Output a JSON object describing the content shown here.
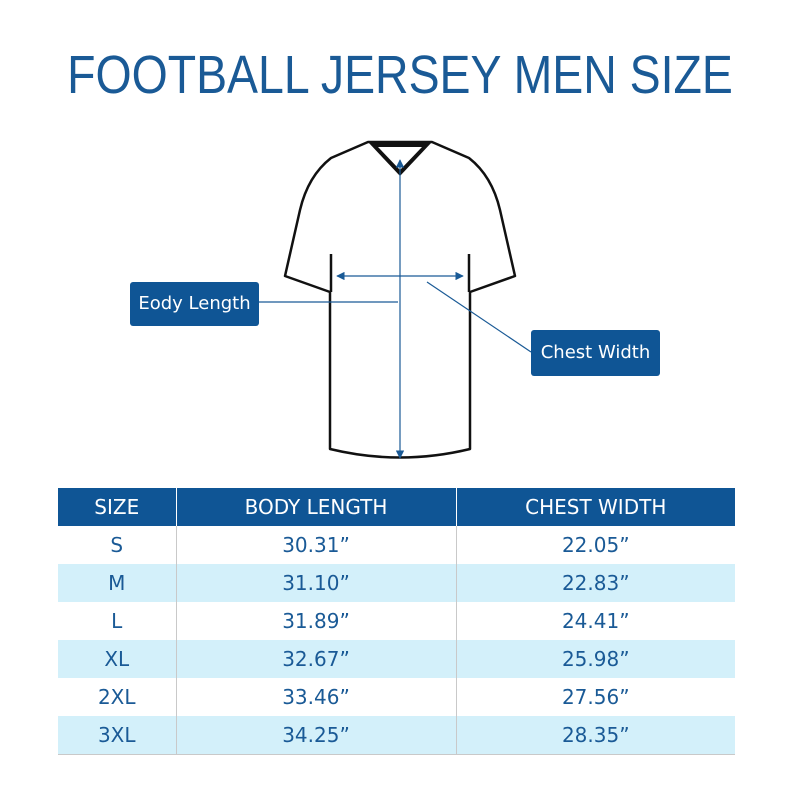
{
  "title": "FOOTBALL JERSEY MEN SIZE",
  "callouts": {
    "body_length": "Eody Length",
    "chest_width": "Chest Width"
  },
  "table": {
    "headers": [
      "SIZE",
      "BODY LENGTH",
      "CHEST WIDTH"
    ],
    "rows": [
      [
        "S",
        "30.31”",
        "22.05”"
      ],
      [
        "M",
        "31.10”",
        "22.83”"
      ],
      [
        "L",
        "31.89”",
        "24.41”"
      ],
      [
        "XL",
        "32.67”",
        "25.98”"
      ],
      [
        "2XL",
        "33.46”",
        "27.56”"
      ],
      [
        "3XL",
        "34.25”",
        "28.35”"
      ]
    ]
  },
  "colors": {
    "brand_blue": "#0f5595",
    "title_blue": "#1a5a96",
    "row_alt": "#d3f0fa"
  },
  "icons": [
    "jersey-outline-illustration",
    "measurement-arrow"
  ]
}
